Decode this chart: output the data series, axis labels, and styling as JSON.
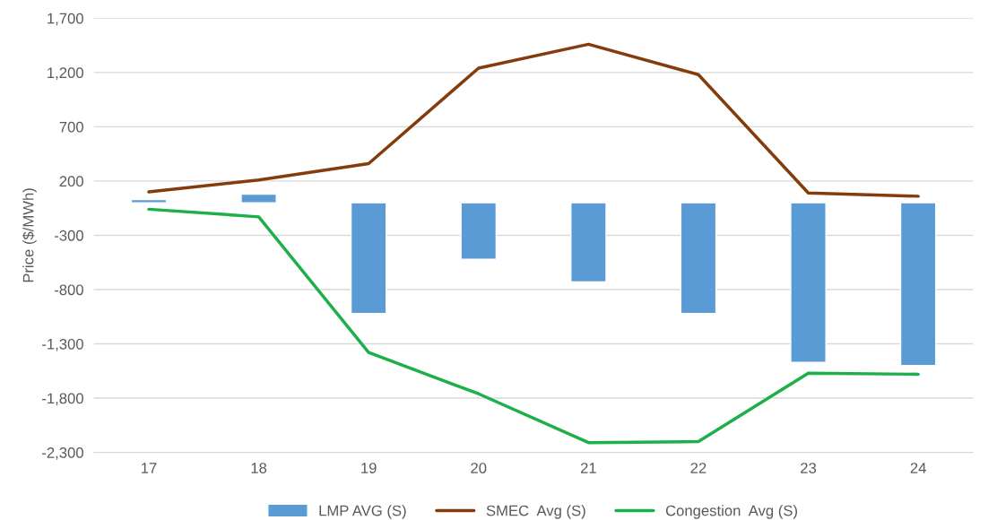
{
  "chart_data": {
    "type": "bar",
    "ylabel": "Price ($/MWh)",
    "categories": [
      "17",
      "18",
      "19",
      "20",
      "21",
      "22",
      "23",
      "24"
    ],
    "series": [
      {
        "name": "LMP AVG (S)",
        "color": "#5b9bd5",
        "values": [
          30,
          80,
          -1020,
          -520,
          -730,
          -1020,
          -1470,
          -1500
        ]
      },
      {
        "name": "SMEC  Avg (S)",
        "type": "line",
        "color": "#843c0c",
        "values": [
          100,
          210,
          360,
          1240,
          1460,
          1180,
          90,
          60
        ]
      },
      {
        "name": "Congestion  Avg (S)",
        "type": "line",
        "color": "#1db04a",
        "values": [
          -60,
          -130,
          -1380,
          -1760,
          -2210,
          -2200,
          -1570,
          -1580
        ]
      }
    ],
    "ylim": [
      -2300,
      1700
    ],
    "yticks": [
      {
        "value": -2300,
        "label": "-2,300"
      },
      {
        "value": -1800,
        "label": "-1,800"
      },
      {
        "value": -1300,
        "label": "-1,300"
      },
      -800,
      -300,
      200,
      700,
      {
        "value": 1200,
        "label": "1,200"
      },
      {
        "value": 1700,
        "label": "1,700"
      }
    ],
    "grid": "y",
    "legend": "bottom"
  }
}
